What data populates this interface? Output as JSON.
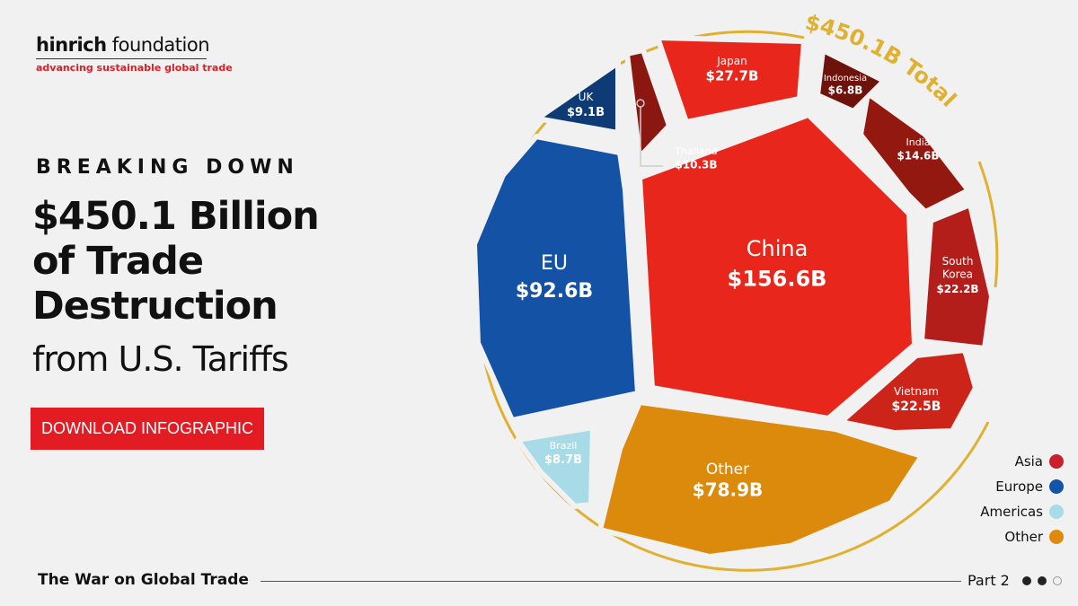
{
  "brand": {
    "name_bold": "hinrich",
    "name_rest": " foundation",
    "tagline": "advancing sustainable global trade"
  },
  "header": {
    "kicker": "BREAKING DOWN",
    "headline": [
      "$450.1 Billion",
      "of Trade",
      "Destruction"
    ],
    "subheadline": "from U.S. Tariffs"
  },
  "cta": {
    "label": "DOWNLOAD INFOGRAPHIC"
  },
  "footer": {
    "series_title": "The War on Global Trade",
    "part": "Part 2",
    "pages_total": 3,
    "current_page": 2
  },
  "colors": {
    "Asia": "#c8202c",
    "Europe": "#1254a8",
    "Americas": "#a8dbe8",
    "Other": "#e08a0c",
    "ring": "#e0b030",
    "button": "#e31b23"
  },
  "chart_data": {
    "type": "treemap",
    "title": "$450.1B Total",
    "total": 450.1,
    "unit": "B USD",
    "items": [
      {
        "name": "China",
        "value": 156.6,
        "label": "$156.6B",
        "region": "Asia"
      },
      {
        "name": "EU",
        "value": 92.6,
        "label": "$92.6B",
        "region": "Europe"
      },
      {
        "name": "Other",
        "value": 78.9,
        "label": "$78.9B",
        "region": "Other"
      },
      {
        "name": "Japan",
        "value": 27.7,
        "label": "$27.7B",
        "region": "Asia"
      },
      {
        "name": "Vietnam",
        "value": 22.5,
        "label": "$22.5B",
        "region": "Asia"
      },
      {
        "name": "South Korea",
        "value": 22.2,
        "label": "$22.2B",
        "region": "Asia"
      },
      {
        "name": "India",
        "value": 14.6,
        "label": "$14.6B",
        "region": "Asia"
      },
      {
        "name": "Thailand",
        "value": 10.3,
        "label": "$10.3B",
        "region": "Asia"
      },
      {
        "name": "UK",
        "value": 9.1,
        "label": "$9.1B",
        "region": "Europe"
      },
      {
        "name": "Brazil",
        "value": 8.7,
        "label": "$8.7B",
        "region": "Americas"
      },
      {
        "name": "Indonesia",
        "value": 6.8,
        "label": "$6.8B",
        "region": "Asia"
      }
    ],
    "legend": {
      "placement": "bottom-right",
      "entries": [
        "Asia",
        "Europe",
        "Americas",
        "Other"
      ]
    }
  }
}
